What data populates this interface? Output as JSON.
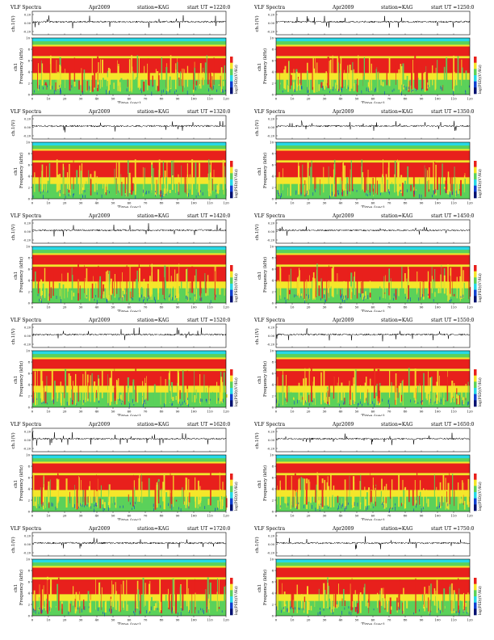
{
  "common": {
    "title": "VLF Spectra",
    "date": "Apr2009",
    "station": "station=KAG",
    "ut_prefix": "start UT =",
    "wave_ylabel": "ch.1(V)",
    "spec_ylabel_ch": "ch1",
    "spec_ylabel": "Frequency (kHz)",
    "colorbar_label": "log(PSD)(V²/Hz)",
    "xlabel": "Time (sec)"
  },
  "colors": {
    "red": "#e8201c",
    "yellow": "#f5e62a",
    "green": "#5bd15a",
    "cyan": "#27d8e6",
    "blue": "#1040d0",
    "navy": "#001070"
  },
  "panels": [
    {
      "ut": "1220:0"
    },
    {
      "ut": "1250:0"
    },
    {
      "ut": "1320:0"
    },
    {
      "ut": "1350:0"
    },
    {
      "ut": "1420:0"
    },
    {
      "ut": "1450:0"
    },
    {
      "ut": "1520:0"
    },
    {
      "ut": "1550:0"
    },
    {
      "ut": "1620:0"
    },
    {
      "ut": "1650:0"
    },
    {
      "ut": "1720:0"
    },
    {
      "ut": "1750:0"
    }
  ],
  "chart_data": {
    "type": "heatmap",
    "x_ticks": [
      0,
      10,
      20,
      30,
      40,
      50,
      60,
      70,
      80,
      90,
      100,
      110,
      120
    ],
    "xlim": [
      0,
      120
    ],
    "spec_y_ticks": [
      0,
      2,
      4,
      6,
      8,
      10
    ],
    "spec_ylim": [
      0,
      10
    ],
    "wave_y_ticks": [
      "0.20",
      "0.00",
      "-0.20"
    ]
  }
}
